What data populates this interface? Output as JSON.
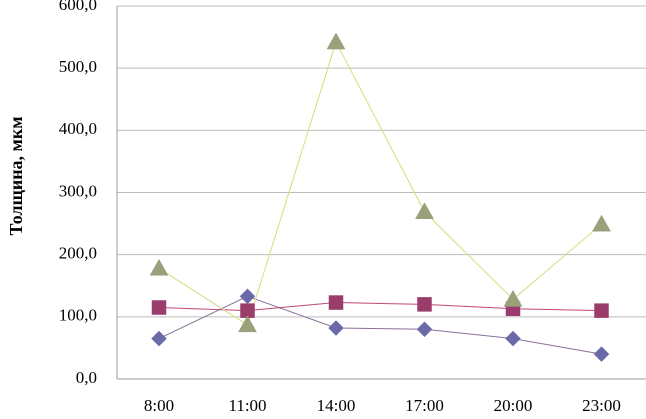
{
  "chart_data": {
    "type": "line",
    "title": "",
    "xlabel": "",
    "ylabel": "Толщина, мкм",
    "categories": [
      "8:00",
      "11:00",
      "14:00",
      "17:00",
      "20:00",
      "23:00"
    ],
    "y_tick_labels": [
      "0,0",
      "100,0",
      "200,0",
      "300,0",
      "400,0",
      "500,0",
      "600,0"
    ],
    "ylim": [
      0,
      600
    ],
    "grid": true,
    "legend": "none",
    "series": [
      {
        "marker": "diamond",
        "color": "#6b6aa8",
        "line_color": "#8a6f9a",
        "values": [
          65,
          133,
          82,
          80,
          65,
          40
        ]
      },
      {
        "marker": "square",
        "color": "#9b3d6b",
        "line_color": "#c04878",
        "values": [
          115,
          110,
          123,
          120,
          113,
          110
        ]
      },
      {
        "marker": "triangle",
        "color": "#9aa07a",
        "line_color": "#d9dc7c",
        "values": [
          178,
          87,
          542,
          269,
          128,
          249
        ]
      }
    ]
  }
}
